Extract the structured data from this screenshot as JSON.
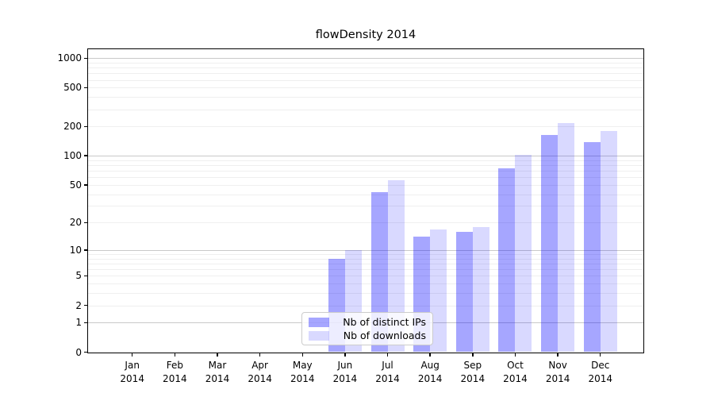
{
  "title": "flowDensity 2014",
  "legend": {
    "items": [
      {
        "label": "Nb of distinct IPs",
        "color": "rgba(0,0,255,0.35)"
      },
      {
        "label": "Nb of downloads",
        "color": "rgba(0,0,255,0.15)"
      }
    ]
  },
  "chart_data": {
    "type": "bar",
    "title": "flowDensity 2014",
    "xlabel": "",
    "ylabel": "",
    "scale": "log1p",
    "categories": [
      "Jan 2014",
      "Feb 2014",
      "Mar 2014",
      "Apr 2014",
      "May 2014",
      "Jun 2014",
      "Jul 2014",
      "Aug 2014",
      "Sep 2014",
      "Oct 2014",
      "Nov 2014",
      "Dec 2014"
    ],
    "series": [
      {
        "name": "Nb of distinct IPs",
        "color": "rgba(0,0,255,0.35)",
        "values": [
          0,
          0,
          0,
          0,
          0,
          8,
          42,
          14,
          16,
          74,
          165,
          137
        ]
      },
      {
        "name": "Nb of downloads",
        "color": "rgba(0,0,255,0.15)",
        "values": [
          0,
          0,
          0,
          0,
          0,
          10,
          56,
          17,
          18,
          103,
          217,
          180
        ]
      }
    ],
    "y_ticks": [
      0,
      1,
      2,
      5,
      10,
      20,
      50,
      100,
      200,
      500,
      1000
    ],
    "ylim": [
      0,
      1230
    ],
    "grid": "both",
    "grid_colors": {
      "major": "#c9c9c9",
      "minor": "#efefef"
    },
    "legend_position": "lower center"
  }
}
